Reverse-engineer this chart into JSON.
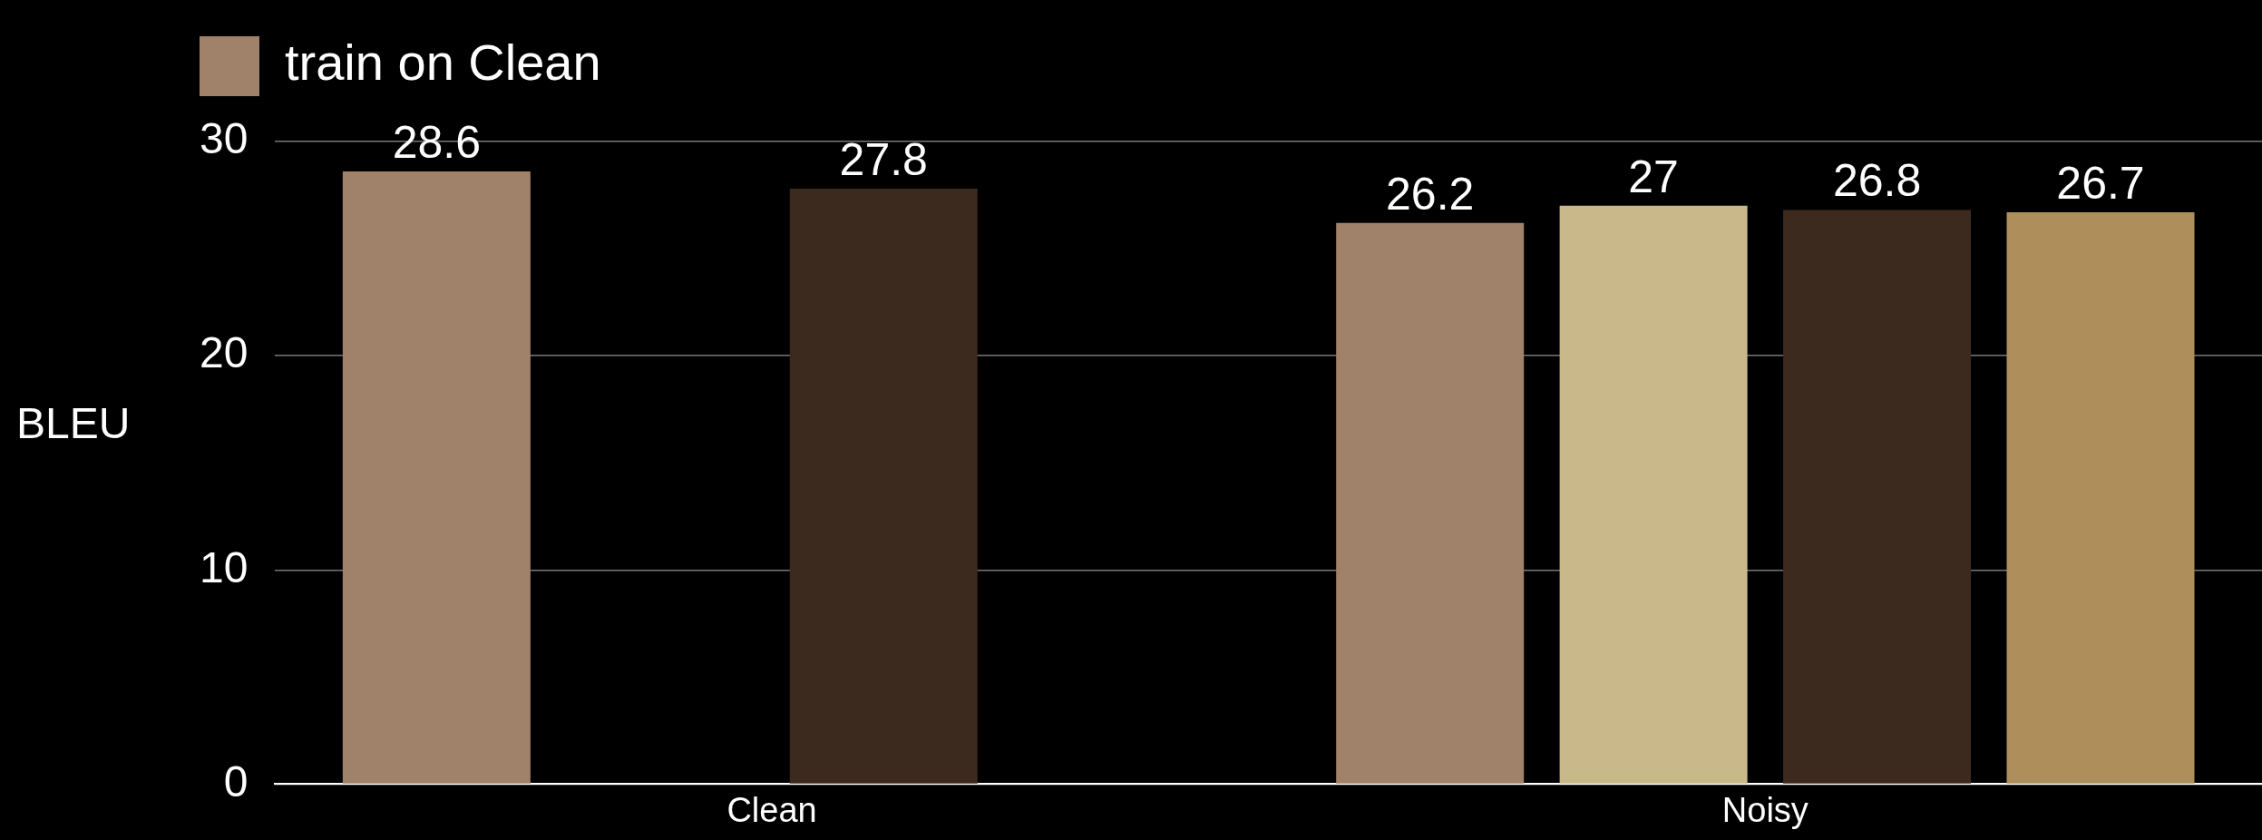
{
  "chart_data": {
    "type": "bar",
    "ylabel": "BLEU",
    "categories": [
      "Clean",
      "Noisy"
    ],
    "series": [
      {
        "name": "train on Clean",
        "color": "#a0826a",
        "values": [
          28.6,
          26.2
        ]
      },
      {
        "color": "#c8b88a",
        "values": [
          null,
          27
        ]
      },
      {
        "color": "#3c2a1f",
        "values": [
          27.8,
          26.8
        ]
      },
      {
        "color": "#ae8f5c",
        "values": [
          null,
          26.7
        ]
      }
    ],
    "ylim": [
      0,
      30
    ],
    "yticks": [
      0,
      10,
      20,
      30
    ],
    "grid": "y",
    "legend": "top left",
    "data_labels": true
  }
}
